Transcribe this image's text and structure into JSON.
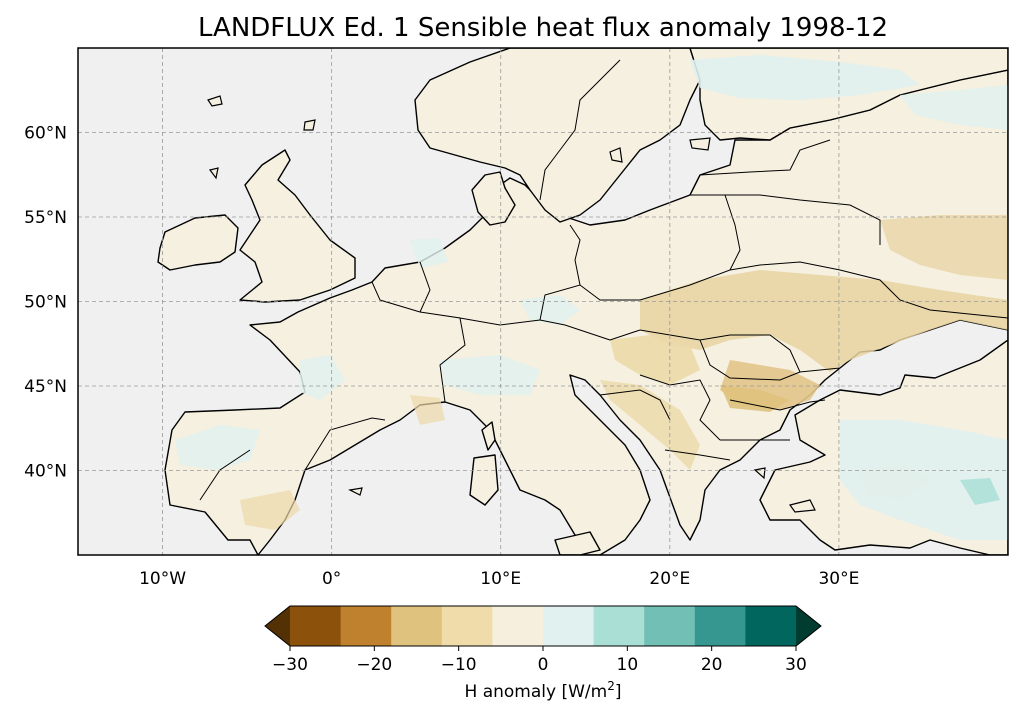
{
  "title": "LANDFLUX Ed. 1 Sensible heat flux anomaly 1998-12",
  "map": {
    "lon_range": [
      -15,
      40
    ],
    "lat_range": [
      35,
      65
    ],
    "x_ticks": [
      "10°W",
      "0°",
      "10°E",
      "20°E",
      "30°E"
    ],
    "x_tick_values": [
      -10,
      0,
      10,
      20,
      30
    ],
    "y_ticks": [
      "40°N",
      "45°N",
      "50°N",
      "55°N",
      "60°N"
    ],
    "y_tick_values": [
      40,
      45,
      50,
      55,
      60
    ],
    "gridlines": true,
    "ocean_color": "#f0f0f0",
    "land_base_color": "#f5f0e0"
  },
  "colorbar": {
    "label_prefix": "H anomaly [W/m",
    "label_sup": "2",
    "label_suffix": "]",
    "ticks": [
      "−30",
      "−20",
      "−10",
      "0",
      "10",
      "20",
      "30"
    ],
    "bounds": [
      -30,
      30
    ],
    "extend": "both",
    "colors": [
      "#543005",
      "#8c510a",
      "#bf812d",
      "#dfc27d",
      "#f0dcaa",
      "#f6efde",
      "#e0f1ef",
      "#aadfd6",
      "#72c0b5",
      "#35978f",
      "#01665e",
      "#003c30"
    ]
  }
}
